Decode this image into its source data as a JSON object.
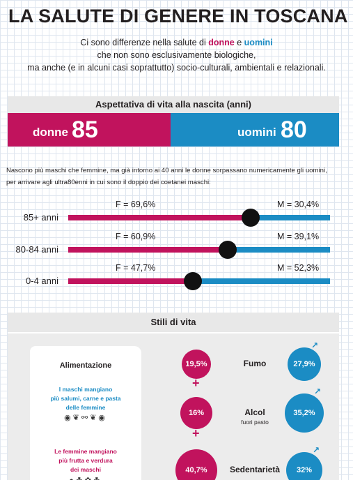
{
  "title": "LA SALUTE DI GENERE IN TOSCANA",
  "intro": {
    "line1_a": "Ci sono differenze nella salute di ",
    "line1_donne": "donne",
    "line1_e": " e ",
    "line1_uomini": "uomini",
    "line2": "che non sono esclusivamente biologiche,",
    "line3": "ma anche (e in alcuni casi soprattutto) socio-culturali, ambientali e relazionali."
  },
  "life_expectancy": {
    "header": "Aspettativa di vita alla nascita (anni)",
    "female_label": "donne",
    "female_value": "85",
    "male_label": "uomini",
    "male_value": "80"
  },
  "note": {
    "line1": "Nascono più maschi che femmine, ma già intorno ai 40 anni le donne sorpassano numericamente gli uomini,",
    "line2": "per arrivare agli ultra80enni in cui sono il doppio dei coetanei maschi:"
  },
  "age_groups": [
    {
      "label": "85+ anni",
      "f_text": "F = 69,6%",
      "m_text": "M = 30,4%",
      "f_share": 0.696
    },
    {
      "label": "80-84 anni",
      "f_text": "F = 60,9%",
      "m_text": "M = 39,1%",
      "f_share": 0.609
    },
    {
      "label": "0-4 anni",
      "f_text": "F = 47,7%",
      "m_text": "M = 52,3%",
      "f_share": 0.477
    }
  ],
  "lifestyle": {
    "header": "Stili di vita",
    "card": {
      "title": "Alimentazione",
      "male_text_1": "I maschi mangiano",
      "male_text_2": "più salumi, carne e pasta",
      "male_text_3": "delle femmine",
      "female_text_1": "Le femmine mangiano",
      "female_text_2": "più frutta e verdura",
      "female_text_3": "dei maschi"
    },
    "topics": [
      {
        "name": "Fumo",
        "sub": "",
        "female": "19,5%",
        "male": "27,9%"
      },
      {
        "name": "Alcol",
        "sub": "fuori pasto",
        "female": "16%",
        "male": "35,2%"
      },
      {
        "name": "Sedentarietà",
        "sub": "",
        "female": "40,7%",
        "male": "32%"
      }
    ]
  },
  "colors": {
    "female": "#c1135d",
    "male": "#1b8cc4"
  }
}
